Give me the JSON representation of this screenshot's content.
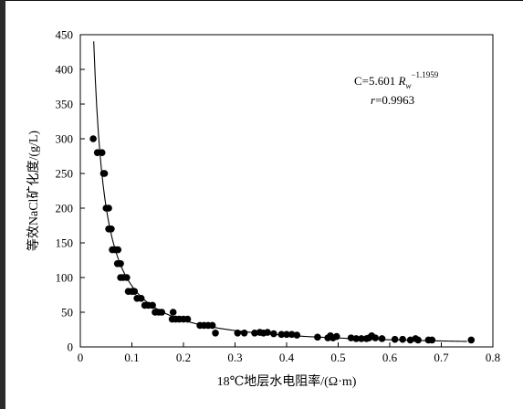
{
  "chart_data": {
    "type": "scatter",
    "xlabel": "18℃地层水电阻率/(Ω·m)",
    "ylabel": "等效NaCl矿化度/(g/L)",
    "xlim": [
      0,
      0.8
    ],
    "ylim": [
      0,
      450
    ],
    "x_ticks": [
      "0",
      "0.1",
      "0.2",
      "0.3",
      "0.4",
      "0.5",
      "0.6",
      "0.7",
      "0.8"
    ],
    "y_ticks": [
      "0",
      "50",
      "100",
      "150",
      "200",
      "250",
      "300",
      "350",
      "400",
      "450"
    ],
    "grid": false,
    "legend": "none",
    "marker_color": "#000000",
    "annotation": {
      "equation_lhs": "C=5.601 ",
      "equation_var": "R",
      "equation_sub": "w",
      "equation_exp": "−1.1959",
      "r_var": "r",
      "r_value": "=0.9963"
    },
    "fit": {
      "type": "power",
      "a": 5.601,
      "b": -1.1959,
      "x_range": [
        0.026,
        0.75
      ]
    },
    "points": [
      {
        "x": 0.025,
        "y": 300
      },
      {
        "x": 0.033,
        "y": 280
      },
      {
        "x": 0.042,
        "y": 280
      },
      {
        "x": 0.045,
        "y": 250
      },
      {
        "x": 0.047,
        "y": 250
      },
      {
        "x": 0.05,
        "y": 200
      },
      {
        "x": 0.055,
        "y": 200
      },
      {
        "x": 0.055,
        "y": 170
      },
      {
        "x": 0.06,
        "y": 170
      },
      {
        "x": 0.062,
        "y": 140
      },
      {
        "x": 0.068,
        "y": 140
      },
      {
        "x": 0.073,
        "y": 140
      },
      {
        "x": 0.072,
        "y": 120
      },
      {
        "x": 0.078,
        "y": 120
      },
      {
        "x": 0.078,
        "y": 100
      },
      {
        "x": 0.083,
        "y": 100
      },
      {
        "x": 0.09,
        "y": 100
      },
      {
        "x": 0.093,
        "y": 80
      },
      {
        "x": 0.1,
        "y": 80
      },
      {
        "x": 0.105,
        "y": 80
      },
      {
        "x": 0.11,
        "y": 70
      },
      {
        "x": 0.118,
        "y": 70
      },
      {
        "x": 0.125,
        "y": 60
      },
      {
        "x": 0.132,
        "y": 60
      },
      {
        "x": 0.14,
        "y": 60
      },
      {
        "x": 0.145,
        "y": 50
      },
      {
        "x": 0.152,
        "y": 50
      },
      {
        "x": 0.158,
        "y": 50
      },
      {
        "x": 0.18,
        "y": 50
      },
      {
        "x": 0.178,
        "y": 40
      },
      {
        "x": 0.185,
        "y": 40
      },
      {
        "x": 0.192,
        "y": 40
      },
      {
        "x": 0.2,
        "y": 40
      },
      {
        "x": 0.208,
        "y": 40
      },
      {
        "x": 0.232,
        "y": 31
      },
      {
        "x": 0.24,
        "y": 31
      },
      {
        "x": 0.248,
        "y": 31
      },
      {
        "x": 0.256,
        "y": 31
      },
      {
        "x": 0.262,
        "y": 20
      },
      {
        "x": 0.305,
        "y": 20
      },
      {
        "x": 0.318,
        "y": 20
      },
      {
        "x": 0.338,
        "y": 20
      },
      {
        "x": 0.348,
        "y": 21
      },
      {
        "x": 0.355,
        "y": 20
      },
      {
        "x": 0.363,
        "y": 21
      },
      {
        "x": 0.375,
        "y": 19
      },
      {
        "x": 0.39,
        "y": 18
      },
      {
        "x": 0.4,
        "y": 18
      },
      {
        "x": 0.41,
        "y": 18
      },
      {
        "x": 0.42,
        "y": 17
      },
      {
        "x": 0.46,
        "y": 14
      },
      {
        "x": 0.48,
        "y": 13
      },
      {
        "x": 0.485,
        "y": 16
      },
      {
        "x": 0.49,
        "y": 13
      },
      {
        "x": 0.497,
        "y": 15
      },
      {
        "x": 0.525,
        "y": 13
      },
      {
        "x": 0.535,
        "y": 12
      },
      {
        "x": 0.545,
        "y": 12
      },
      {
        "x": 0.555,
        "y": 12
      },
      {
        "x": 0.56,
        "y": 13
      },
      {
        "x": 0.565,
        "y": 16
      },
      {
        "x": 0.572,
        "y": 13
      },
      {
        "x": 0.585,
        "y": 12
      },
      {
        "x": 0.61,
        "y": 11
      },
      {
        "x": 0.625,
        "y": 11
      },
      {
        "x": 0.64,
        "y": 10
      },
      {
        "x": 0.65,
        "y": 12
      },
      {
        "x": 0.655,
        "y": 10
      },
      {
        "x": 0.675,
        "y": 10
      },
      {
        "x": 0.682,
        "y": 10
      },
      {
        "x": 0.758,
        "y": 10
      }
    ]
  }
}
